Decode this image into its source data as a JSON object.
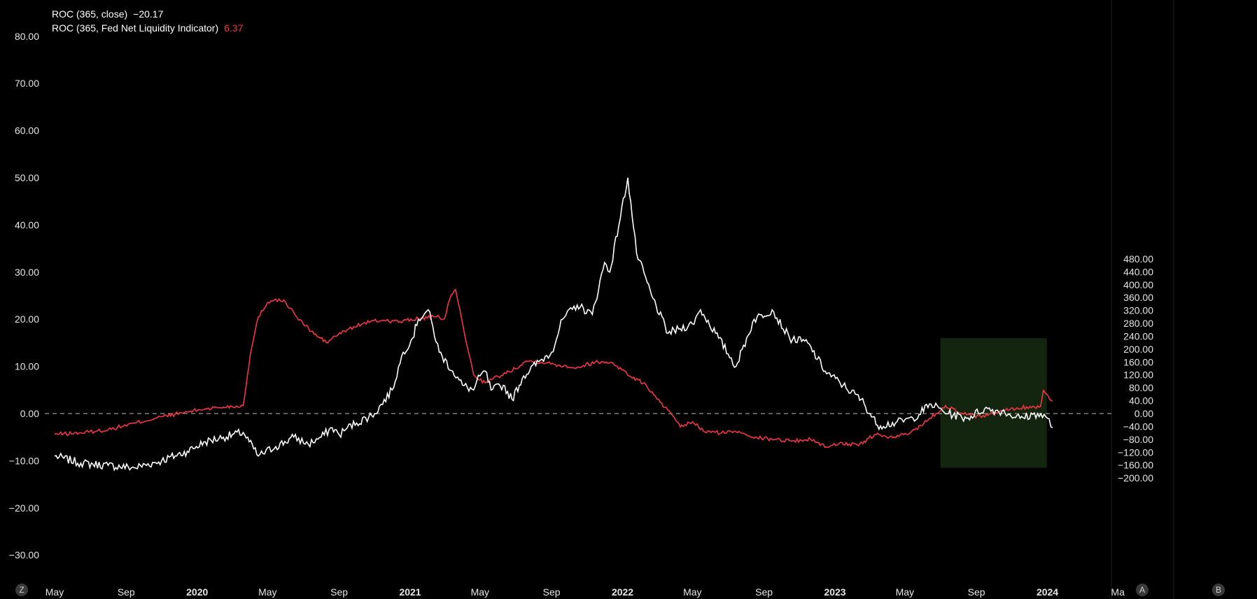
{
  "legend": {
    "series1_label": "ROC (365, close)",
    "series1_value": "−20.17",
    "series2_label": "ROC (365, Fed Net Liquidity Indicator)",
    "series2_value": "6.37"
  },
  "buttons": {
    "left": "Z",
    "a": "A",
    "b": "B"
  },
  "chart_data": {
    "type": "line",
    "x_tick_labels": [
      "May",
      "Sep",
      "2020",
      "May",
      "Sep",
      "2021",
      "May",
      "Sep",
      "2022",
      "May",
      "Sep",
      "2023",
      "May",
      "Sep",
      "2024",
      "Ma"
    ],
    "x_tick_dates": [
      "2019-05",
      "2019-09",
      "2020-01",
      "2020-05",
      "2020-09",
      "2021-01",
      "2021-05",
      "2021-09",
      "2022-01",
      "2022-05",
      "2022-09",
      "2023-01",
      "2023-05",
      "2023-09",
      "2024-01",
      "2024-05"
    ],
    "left_axis": {
      "ticks": [
        "80.00",
        "70.00",
        "60.00",
        "50.00",
        "40.00",
        "30.00",
        "20.00",
        "10.00",
        "0.00",
        "−10.00",
        "−20.00",
        "−30.00"
      ],
      "ylim": [
        -34,
        82
      ]
    },
    "right_axis": {
      "ticks": [
        "480.00",
        "440.00",
        "400.00",
        "360.00",
        "320.00",
        "280.00",
        "240.00",
        "200.00",
        "160.00",
        "120.00",
        "80.00",
        "40.00",
        "0.00",
        "−40.00",
        "−80.00",
        "−120.00",
        "−160.00",
        "−200.00"
      ],
      "ylim": [
        -205,
        490
      ]
    },
    "zero_line": {
      "value": 0,
      "style": "dashed"
    },
    "highlight_box": {
      "x": [
        "2023-07-01",
        "2023-12-31"
      ],
      "y": [
        -11.5,
        16
      ],
      "color": "#13240f"
    },
    "series": [
      {
        "name": "ROC (365, close)",
        "color": "#ffffff",
        "axis": "left",
        "x": [
          "2019-05-01",
          "2019-06-15",
          "2019-08-01",
          "2019-09-15",
          "2019-11-01",
          "2019-12-15",
          "2020-01-15",
          "2020-02-15",
          "2020-03-20",
          "2020-04-15",
          "2020-05-15",
          "2020-06-15",
          "2020-07-10",
          "2020-08-01",
          "2020-08-20",
          "2020-09-01",
          "2020-09-15",
          "2020-10-01",
          "2020-11-01",
          "2020-12-01",
          "2020-12-20",
          "2021-01-05",
          "2021-01-15",
          "2021-02-01",
          "2021-02-20",
          "2021-03-15",
          "2021-04-01",
          "2021-04-20",
          "2021-05-01",
          "2021-05-10",
          "2021-05-20",
          "2021-06-10",
          "2021-06-25",
          "2021-07-15",
          "2021-08-10",
          "2021-09-01",
          "2021-09-20",
          "2021-10-15",
          "2021-11-10",
          "2021-12-01",
          "2021-12-10",
          "2022-01-10",
          "2022-01-25",
          "2022-02-20",
          "2022-03-20",
          "2022-04-10",
          "2022-05-01",
          "2022-05-15",
          "2022-06-15",
          "2022-07-15",
          "2022-08-15",
          "2022-09-15",
          "2022-10-15",
          "2022-11-15",
          "2022-12-15",
          "2023-01-15",
          "2023-02-15",
          "2023-03-15",
          "2023-04-15",
          "2023-05-15",
          "2023-06-15",
          "2023-07-15",
          "2023-08-15",
          "2023-09-15",
          "2023-10-15",
          "2023-11-15",
          "2023-12-15",
          "2024-01-01",
          "2024-01-10"
        ],
        "y": [
          -9,
          -10.5,
          -11,
          -11.5,
          -10,
          -8,
          -6,
          -5,
          -4,
          -9,
          -7,
          -5,
          -6.5,
          -5,
          -3,
          -4.5,
          -3,
          -2,
          0,
          5,
          13,
          16,
          20,
          22,
          13,
          9,
          6,
          5,
          8,
          9,
          5,
          6,
          3,
          8,
          11,
          13,
          20,
          23,
          21,
          32,
          30,
          50,
          34,
          25,
          17,
          18,
          19,
          22,
          16,
          10,
          20,
          22,
          16,
          15,
          9,
          6,
          3,
          -2.5,
          -2,
          -1,
          2,
          0,
          -1,
          1,
          0.5,
          -1,
          0,
          -1,
          -3
        ]
      },
      {
        "name": "ROC (365, Fed Net Liquidity Indicator)",
        "color": "#f23645",
        "axis": "right",
        "x": [
          "2019-05-01",
          "2019-06-15",
          "2019-08-01",
          "2019-09-15",
          "2019-11-01",
          "2019-12-15",
          "2020-01-15",
          "2020-02-15",
          "2020-03-01",
          "2020-03-20",
          "2020-04-01",
          "2020-04-15",
          "2020-05-01",
          "2020-05-15",
          "2020-06-01",
          "2020-06-20",
          "2020-07-15",
          "2020-08-10",
          "2020-08-25",
          "2020-09-15",
          "2020-10-15",
          "2020-11-15",
          "2020-12-15",
          "2021-01-15",
          "2021-02-15",
          "2021-03-01",
          "2021-03-10",
          "2021-03-20",
          "2021-04-01",
          "2021-04-10",
          "2021-04-20",
          "2021-05-10",
          "2021-06-01",
          "2021-06-20",
          "2021-07-20",
          "2021-08-15",
          "2021-09-15",
          "2021-10-15",
          "2021-11-15",
          "2021-12-15",
          "2022-01-15",
          "2022-02-10",
          "2022-03-01",
          "2022-03-20",
          "2022-04-10",
          "2022-05-01",
          "2022-05-20",
          "2022-06-20",
          "2022-07-20",
          "2022-08-20",
          "2022-09-20",
          "2022-10-20",
          "2022-11-20",
          "2022-12-20",
          "2023-01-10",
          "2023-02-10",
          "2023-03-10",
          "2023-04-10",
          "2023-05-10",
          "2023-06-10",
          "2023-07-10",
          "2023-08-10",
          "2023-09-10",
          "2023-10-10",
          "2023-11-10",
          "2023-12-10",
          "2023-12-20",
          "2023-12-25",
          "2024-01-10"
        ],
        "y": [
          -64,
          -60,
          -50,
          -30,
          -10,
          5,
          15,
          20,
          22,
          24,
          180,
          300,
          345,
          355,
          345,
          300,
          255,
          220,
          240,
          260,
          282,
          290,
          285,
          295,
          300,
          295,
          355,
          385,
          280,
          200,
          120,
          95,
          115,
          130,
          163,
          160,
          150,
          143,
          160,
          158,
          115,
          90,
          45,
          10,
          -42,
          -25,
          -55,
          -60,
          -55,
          -75,
          -80,
          -85,
          -80,
          -105,
          -90,
          -100,
          -65,
          -75,
          -60,
          -20,
          25,
          -1,
          -12,
          5,
          18,
          20,
          22,
          72,
          39
        ]
      }
    ]
  }
}
